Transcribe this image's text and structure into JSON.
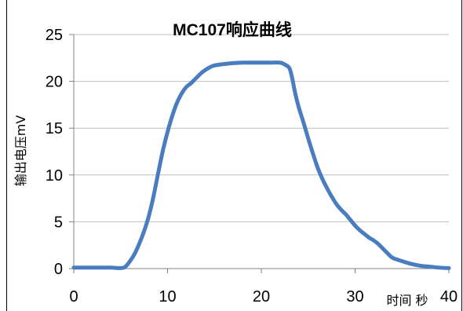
{
  "chart_data": {
    "type": "line",
    "title": "MC107响应曲线",
    "xlabel": "时间 秒",
    "ylabel": "输出电压mV",
    "xlim": [
      0,
      40
    ],
    "ylim": [
      0,
      25
    ],
    "x_ticks": [
      0,
      10,
      20,
      30,
      40
    ],
    "y_ticks": [
      0,
      5,
      10,
      15,
      20,
      25
    ],
    "grid": "horizontal",
    "legend": "none",
    "series": [
      {
        "color": "#4a7cc0",
        "points": [
          [
            0,
            0.1
          ],
          [
            1,
            0.1
          ],
          [
            2,
            0.1
          ],
          [
            3,
            0.1
          ],
          [
            4,
            0.1
          ],
          [
            5,
            0.05
          ],
          [
            5.5,
            0.2
          ],
          [
            6,
            0.8
          ],
          [
            6.5,
            1.6
          ],
          [
            7,
            2.7
          ],
          [
            7.5,
            4.0
          ],
          [
            8,
            5.6
          ],
          [
            8.5,
            7.7
          ],
          [
            9,
            10.2
          ],
          [
            9.5,
            12.6
          ],
          [
            10,
            14.6
          ],
          [
            10.5,
            16.3
          ],
          [
            11,
            17.7
          ],
          [
            11.5,
            18.7
          ],
          [
            12,
            19.4
          ],
          [
            12.5,
            19.8
          ],
          [
            13,
            20.3
          ],
          [
            13.5,
            20.8
          ],
          [
            14,
            21.2
          ],
          [
            14.5,
            21.5
          ],
          [
            15,
            21.7
          ],
          [
            16,
            21.85
          ],
          [
            17,
            21.95
          ],
          [
            18,
            22.0
          ],
          [
            19,
            22.0
          ],
          [
            20,
            22.0
          ],
          [
            21,
            22.0
          ],
          [
            22,
            22.0
          ],
          [
            22.5,
            21.8
          ],
          [
            23,
            21.4
          ],
          [
            23.3,
            20.3
          ],
          [
            23.6,
            18.8
          ],
          [
            24,
            17.2
          ],
          [
            24.5,
            15.6
          ],
          [
            25,
            13.9
          ],
          [
            25.5,
            12.3
          ],
          [
            26,
            10.8
          ],
          [
            26.5,
            9.6
          ],
          [
            27,
            8.6
          ],
          [
            27.5,
            7.7
          ],
          [
            28,
            6.9
          ],
          [
            28.5,
            6.3
          ],
          [
            29,
            5.8
          ],
          [
            29.5,
            5.2
          ],
          [
            30,
            4.6
          ],
          [
            30.5,
            4.1
          ],
          [
            31,
            3.7
          ],
          [
            31.5,
            3.3
          ],
          [
            32,
            3.0
          ],
          [
            32.5,
            2.6
          ],
          [
            33,
            2.1
          ],
          [
            33.5,
            1.6
          ],
          [
            34,
            1.15
          ],
          [
            35,
            0.8
          ],
          [
            36,
            0.5
          ],
          [
            37,
            0.3
          ],
          [
            38,
            0.2
          ],
          [
            39,
            0.1
          ],
          [
            40,
            0.05
          ]
        ]
      }
    ]
  }
}
